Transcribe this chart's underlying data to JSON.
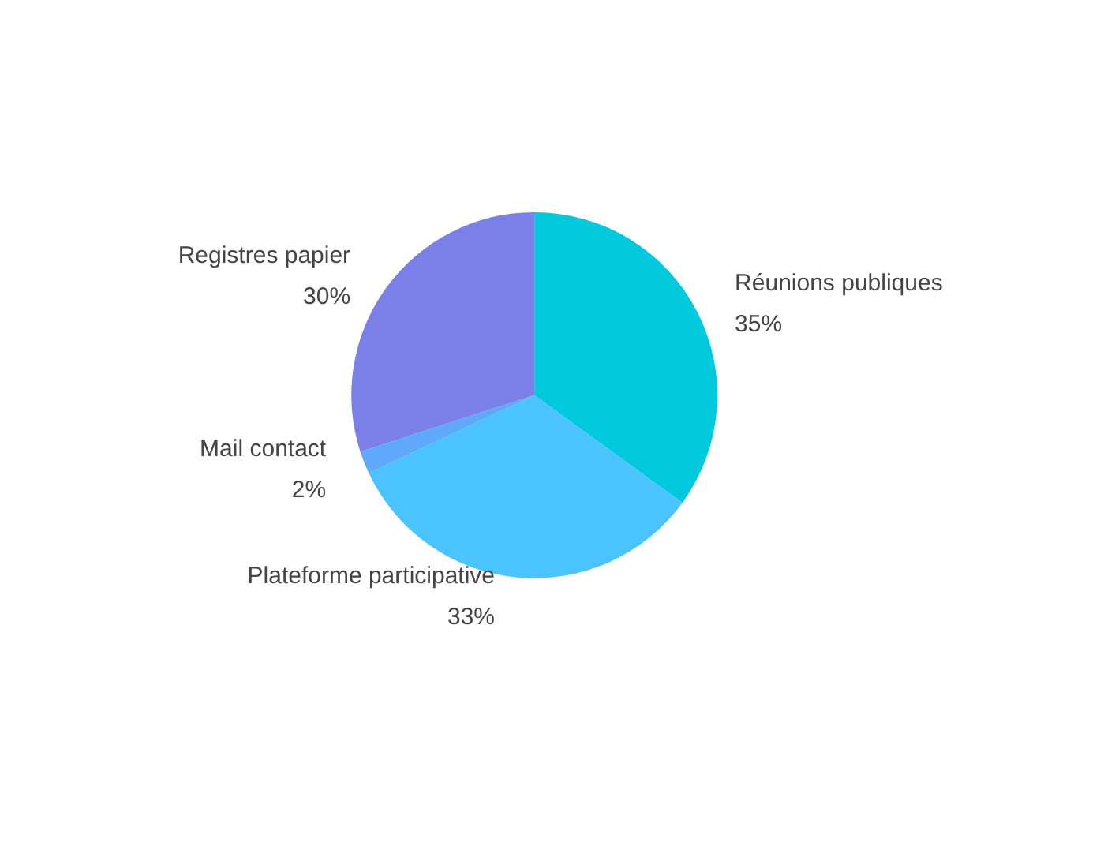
{
  "chart_data": {
    "type": "pie",
    "categories": [
      "Réunions publiques",
      "Plateforme participative",
      "Mail contact",
      "Registres papier"
    ],
    "values": [
      35,
      33,
      2,
      30
    ],
    "colors": [
      "#00c9de",
      "#4ac3fe",
      "#5fa9fd",
      "#7b80e8"
    ],
    "value_labels": [
      "35%",
      "33%",
      "2%",
      "30%"
    ],
    "legend": false
  }
}
